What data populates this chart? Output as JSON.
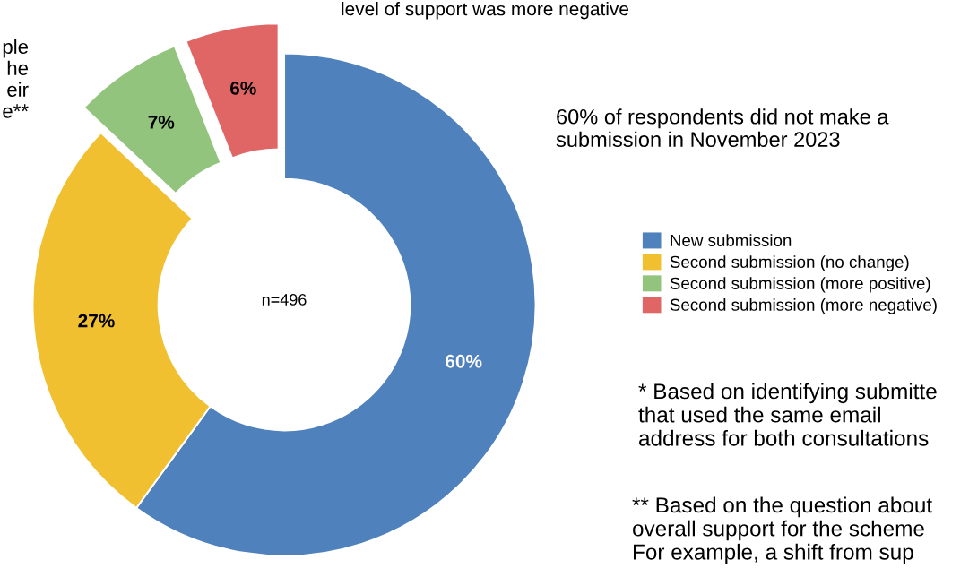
{
  "chart_data": {
    "type": "donut",
    "categories": [
      "New submission",
      "Second submission (no change)",
      "Second submission (more positive)",
      "Second submission (more negative)"
    ],
    "values": [
      60,
      27,
      7,
      6
    ],
    "colors": [
      "#4f81bd",
      "#f0c030",
      "#92c47d",
      "#e06666"
    ],
    "value_labels": [
      "60%",
      "27%",
      "7%",
      "6%"
    ],
    "legend": "right",
    "annotations": [
      "n=496",
      "level of support was more negative",
      "60% of respondents did not make a\nsubmission in November 2023",
      "* Based on identifying submitte\nthat used the same email\naddress for both consultations",
      "** Based on the question about\noverall support for the scheme\nFor example, a shift from sup",
      "ple\nhe\neir\ne**"
    ]
  }
}
